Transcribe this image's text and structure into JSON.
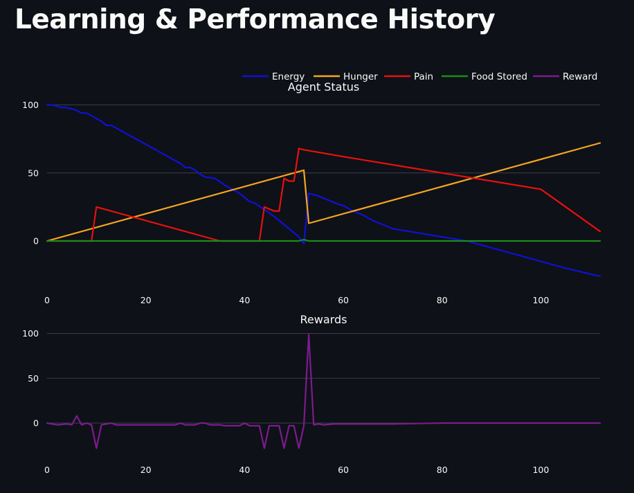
{
  "page": {
    "title": "Learning & Performance History"
  },
  "colors": {
    "Energy": "#1010d8",
    "Hunger": "#f5a623",
    "Pain": "#e81010",
    "Food Stored": "#1a8c1a",
    "Reward": "#7d1b8f"
  },
  "chart_data": [
    {
      "type": "line",
      "title": "Agent Status",
      "legend": "top",
      "xlim": [
        0,
        112
      ],
      "ylim": [
        -30,
        105
      ],
      "xticks": [
        0,
        20,
        40,
        60,
        80,
        100
      ],
      "yticks": [
        0,
        50,
        100
      ],
      "series": [
        {
          "name": "Energy",
          "x": [
            0,
            1,
            2,
            3,
            4,
            5,
            6,
            7,
            8,
            9,
            10,
            11,
            12,
            13,
            14,
            16,
            18,
            20,
            22,
            24,
            26,
            27,
            28,
            29,
            30,
            31,
            32,
            34,
            36,
            38,
            39,
            40,
            41,
            42,
            44,
            46,
            48,
            50,
            51,
            52,
            53,
            55,
            57,
            59,
            60,
            62,
            64,
            66,
            68,
            70,
            75,
            80,
            85,
            90,
            95,
            100,
            105,
            112
          ],
          "y": [
            100,
            100,
            99,
            98,
            98,
            97,
            96,
            94,
            94,
            92,
            90,
            88,
            85,
            85,
            83,
            79,
            75,
            71,
            67,
            63,
            59,
            57,
            54,
            54,
            52,
            49,
            47,
            46,
            41,
            37,
            35,
            32,
            29,
            28,
            23,
            18,
            12,
            6,
            3,
            -2,
            35,
            33,
            30,
            27,
            26,
            22,
            19,
            15,
            12,
            9,
            6,
            3,
            0,
            -5,
            -10,
            -15,
            -20,
            -26
          ]
        },
        {
          "name": "Hunger",
          "x": [
            0,
            52,
            53,
            112
          ],
          "y": [
            0,
            52,
            13,
            72
          ]
        },
        {
          "name": "Pain",
          "x": [
            0,
            9,
            10,
            35,
            36,
            43,
            44,
            46,
            47,
            48,
            49,
            50,
            51,
            52,
            60,
            70,
            80,
            90,
            100,
            112
          ],
          "y": [
            0,
            0,
            25,
            0,
            0,
            0,
            25,
            22,
            22,
            46,
            44,
            44,
            68,
            67,
            62,
            56,
            50,
            44,
            38,
            7
          ]
        },
        {
          "name": "Food Stored",
          "x": [
            0,
            51,
            52,
            53,
            112
          ],
          "y": [
            0,
            0,
            1,
            0,
            0
          ]
        }
      ]
    },
    {
      "type": "line",
      "title": "Rewards",
      "xlim": [
        0,
        112
      ],
      "ylim": [
        -30,
        105
      ],
      "xticks": [
        0,
        20,
        40,
        60,
        80,
        100
      ],
      "yticks": [
        0,
        50,
        100
      ],
      "series": [
        {
          "name": "Reward",
          "x": [
            0,
            2,
            4,
            5,
            6,
            7,
            8,
            9,
            10,
            11,
            12,
            13,
            14,
            16,
            20,
            25,
            26,
            27,
            28,
            30,
            31,
            32,
            33,
            34,
            35,
            36,
            37,
            38,
            39,
            40,
            41,
            42,
            43,
            44,
            45,
            46,
            47,
            48,
            49,
            50,
            51,
            52,
            53,
            54,
            55,
            56,
            58,
            60,
            70,
            80,
            90,
            100,
            112
          ],
          "y": [
            0,
            -2,
            -1,
            -2,
            8,
            -2,
            0,
            -2,
            -28,
            -2,
            -1,
            0,
            -2,
            -2,
            -2,
            -2,
            -2,
            0,
            -2,
            -2,
            0,
            0,
            -2,
            -2,
            -2,
            -3,
            -3,
            -3,
            -3,
            0,
            -3,
            -3,
            -3,
            -28,
            -3,
            -3,
            -3,
            -28,
            -3,
            -3,
            -28,
            -3,
            99,
            -2,
            -1,
            -2,
            -1,
            -1,
            -1,
            0,
            0,
            0,
            0
          ]
        }
      ]
    }
  ]
}
